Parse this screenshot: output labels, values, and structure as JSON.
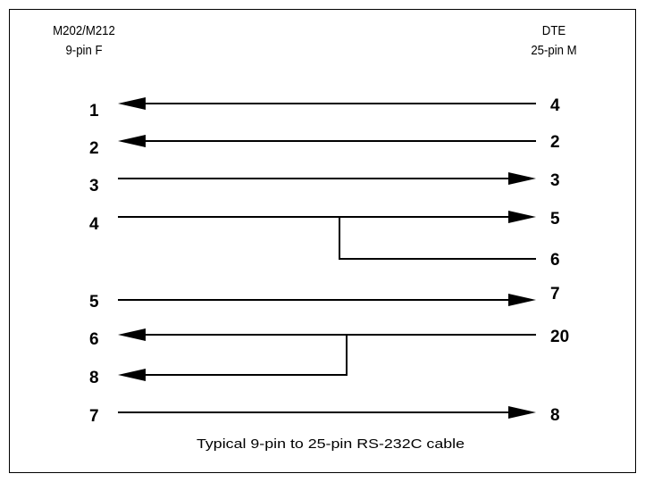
{
  "header": {
    "left": {
      "line1": "M202/M212",
      "line2": "9-pin F"
    },
    "right": {
      "line1": "DTE",
      "line2": "25-pin M"
    }
  },
  "wires": [
    {
      "left": "1",
      "right": "4",
      "dir": "left"
    },
    {
      "left": "2",
      "right": "2",
      "dir": "left"
    },
    {
      "left": "3",
      "right": "3",
      "dir": "right"
    },
    {
      "left": "4",
      "right": "5",
      "dir": "right",
      "branch_right": "6"
    },
    {
      "left": "5",
      "right": "7",
      "dir": "right"
    },
    {
      "left": "6",
      "right": "20",
      "dir": "left",
      "branch_left": "8"
    },
    {
      "left": "7",
      "right": "8",
      "dir": "right"
    }
  ],
  "caption": "Typical 9-pin to 25-pin RS-232C cable",
  "colors": {
    "line": "#000000",
    "background": "#ffffff"
  }
}
